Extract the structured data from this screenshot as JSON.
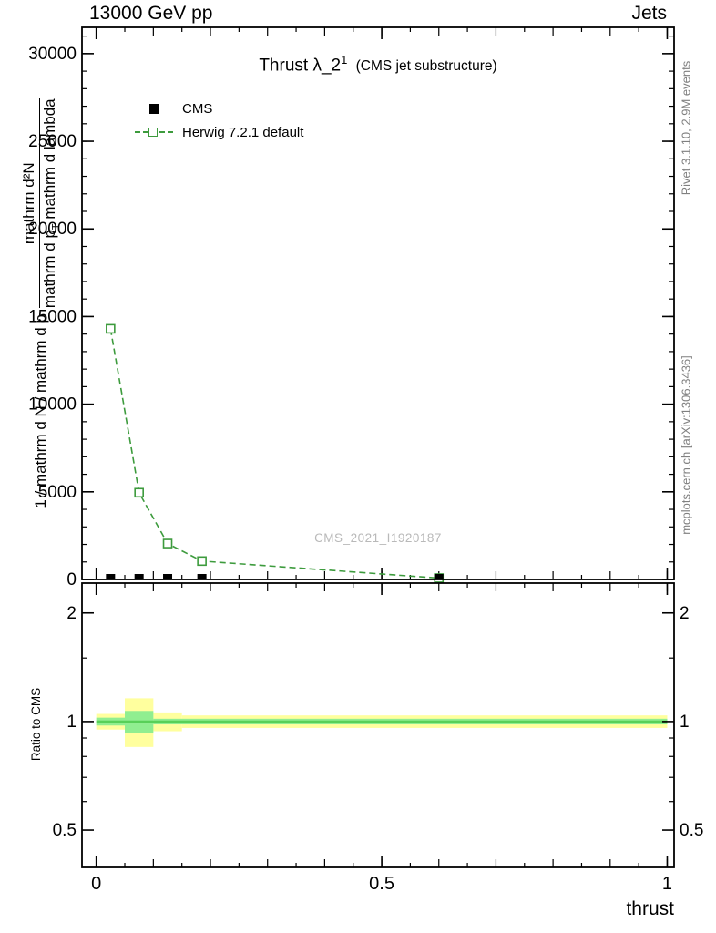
{
  "header": {
    "left": "13000 GeV pp",
    "right": "Jets"
  },
  "title": {
    "main": "Thrust λ_2",
    "sup": "1",
    "suffix": "(CMS jet substructure)"
  },
  "legend": {
    "items": [
      {
        "label": "CMS"
      },
      {
        "label": "Herwig 7.2.1 default"
      }
    ]
  },
  "watermark": "CMS_2021_I1920187",
  "axis": {
    "xlabel": "thrust",
    "ratio_ylabel": "Ratio to CMS",
    "ylabel": {
      "prefix": "1 / mathrm d N / mathrm d p",
      "numerator": "mathrm d²N",
      "den_pre": "mathrm d p",
      "den_sub": "T",
      "den_post": " mathrm d lambda"
    }
  },
  "side_notes": {
    "top_right": "Rivet 3.1.10,  2.9M events",
    "bottom_right": "mcplots.cern.ch [arXiv:1306.3436]"
  },
  "colors": {
    "herwig": "#3d9b3d",
    "cms": "#000000",
    "band_yellow": "#ffff9e",
    "band_green": "#90ee90",
    "ratio_line": "#58d058",
    "frame": "#000000"
  },
  "chart_data": [
    {
      "type": "line",
      "panel": "main",
      "title": "Thrust λ_2^1 (CMS jet substructure)",
      "xlabel": "thrust",
      "ylabel": "1 / mathrm d N / mathrm d p · mathrm d²N / (mathrm d p_T mathrm d lambda)",
      "xlim": [
        -0.025,
        1.012
      ],
      "ylim": [
        0,
        31500
      ],
      "xticks": [
        0,
        0.5,
        1
      ],
      "xtick_labels": [
        "0",
        "0.5",
        "1"
      ],
      "x_mid_step": 0.1,
      "x_minor_step": 0.05,
      "yticks": [
        0,
        5000,
        10000,
        15000,
        20000,
        25000,
        30000
      ],
      "y_minor_step": 1000,
      "grid": false,
      "legend_position": "upper-left",
      "series": [
        {
          "name": "CMS",
          "type": "scatter",
          "marker": "filled-square",
          "color": "#000000",
          "x": [
            0.025,
            0.075,
            0.125,
            0.185,
            0.6
          ],
          "y": [
            150,
            150,
            120,
            100,
            130
          ]
        },
        {
          "name": "Herwig 7.2.1 default",
          "type": "line-dashed",
          "marker": "open-square",
          "color": "#3d9b3d",
          "x": [
            0.025,
            0.075,
            0.125,
            0.185,
            0.6
          ],
          "y": [
            14300,
            4950,
            2050,
            1050,
            80
          ]
        }
      ]
    },
    {
      "type": "band",
      "panel": "ratio",
      "ylabel": "Ratio to CMS",
      "yscale": "log",
      "xlim": [
        -0.025,
        1.012
      ],
      "ylim": [
        0.394,
        2.42
      ],
      "yticks": [
        0.5,
        1,
        2
      ],
      "ytick_labels": [
        "0.5",
        "1",
        "2"
      ],
      "yticks_minor": [
        0.6,
        0.7,
        0.8,
        0.9,
        1.5
      ],
      "xticks": [
        0,
        0.5,
        1
      ],
      "x_mid_step": 0.1,
      "x_minor_step": 0.05,
      "center_line": {
        "y": 1.0
      },
      "bands": [
        {
          "name": "total-uncertainty",
          "color_key": "band_yellow",
          "segments": [
            {
              "x0": 0.0,
              "x1": 0.05,
              "lo": 0.95,
              "hi": 1.05
            },
            {
              "x0": 0.05,
              "x1": 0.1,
              "lo": 0.85,
              "hi": 1.16
            },
            {
              "x0": 0.1,
              "x1": 0.15,
              "lo": 0.94,
              "hi": 1.06
            },
            {
              "x0": 0.15,
              "x1": 1.0,
              "lo": 0.96,
              "hi": 1.04
            }
          ]
        },
        {
          "name": "stat-uncertainty",
          "color_key": "band_green",
          "segments": [
            {
              "x0": 0.0,
              "x1": 0.05,
              "lo": 0.975,
              "hi": 1.025
            },
            {
              "x0": 0.05,
              "x1": 0.1,
              "lo": 0.93,
              "hi": 1.07
            },
            {
              "x0": 0.1,
              "x1": 1.0,
              "lo": 0.982,
              "hi": 1.018
            }
          ]
        }
      ]
    }
  ]
}
